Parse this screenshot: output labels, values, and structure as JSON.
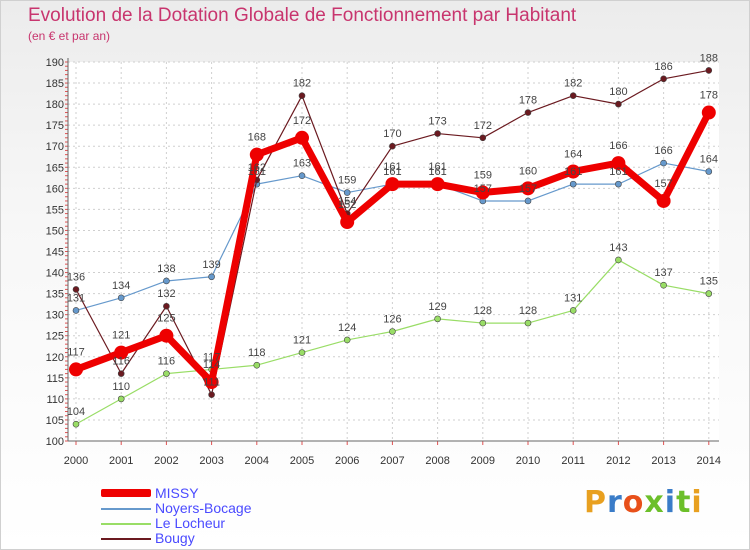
{
  "chart_data": {
    "type": "line",
    "title": "Evolution de la Dotation Globale de Fonctionnement par Habitant",
    "subtitle": "(en € et par an)",
    "xlabel": "",
    "ylabel": "",
    "categories": [
      "2000",
      "2001",
      "2002",
      "2003",
      "2004",
      "2005",
      "2006",
      "2007",
      "2008",
      "2009",
      "2010",
      "2011",
      "2012",
      "2013",
      "2014"
    ],
    "ylim": [
      100,
      190
    ],
    "yticks": [
      100,
      105,
      110,
      115,
      120,
      125,
      130,
      135,
      140,
      145,
      150,
      155,
      160,
      165,
      170,
      175,
      180,
      185,
      190
    ],
    "grid": true,
    "legend_position": "bottom-left",
    "series": [
      {
        "name": "Le Locheur",
        "color": "#99dd66",
        "values": [
          104,
          110,
          116,
          117,
          118,
          121,
          124,
          126,
          129,
          128,
          128,
          131,
          143,
          137,
          135
        ]
      },
      {
        "name": "Noyers-Bocage",
        "color": "#6699cc",
        "values": [
          131,
          134,
          138,
          139,
          161,
          163,
          159,
          161,
          161,
          157,
          157,
          161,
          161,
          166,
          164
        ]
      },
      {
        "name": "Bougy",
        "color": "#6b1a20",
        "values": [
          136,
          116,
          132,
          111,
          162,
          182,
          154,
          170,
          173,
          172,
          178,
          182,
          180,
          186,
          188
        ]
      },
      {
        "name": "MISSY",
        "color": "#ee0000",
        "values": [
          117,
          121,
          125,
          114,
          168,
          172,
          152,
          161,
          161,
          159,
          160,
          164,
          166,
          157,
          178
        ]
      }
    ]
  },
  "legend": {
    "items": [
      {
        "name": "MISSY",
        "color": "#ee0000"
      },
      {
        "name": "Noyers-Bocage",
        "color": "#6699cc"
      },
      {
        "name": "Le Locheur",
        "color": "#99dd66"
      },
      {
        "name": "Bougy",
        "color": "#6b1a20"
      }
    ]
  },
  "brand": {
    "text": "Proxiti",
    "letter_colors": [
      "#e8a020",
      "#3a7cc8",
      "#e8501a",
      "#6cbf2a",
      "#3a7cc8",
      "#6cbf2a",
      "#e8a020"
    ]
  }
}
